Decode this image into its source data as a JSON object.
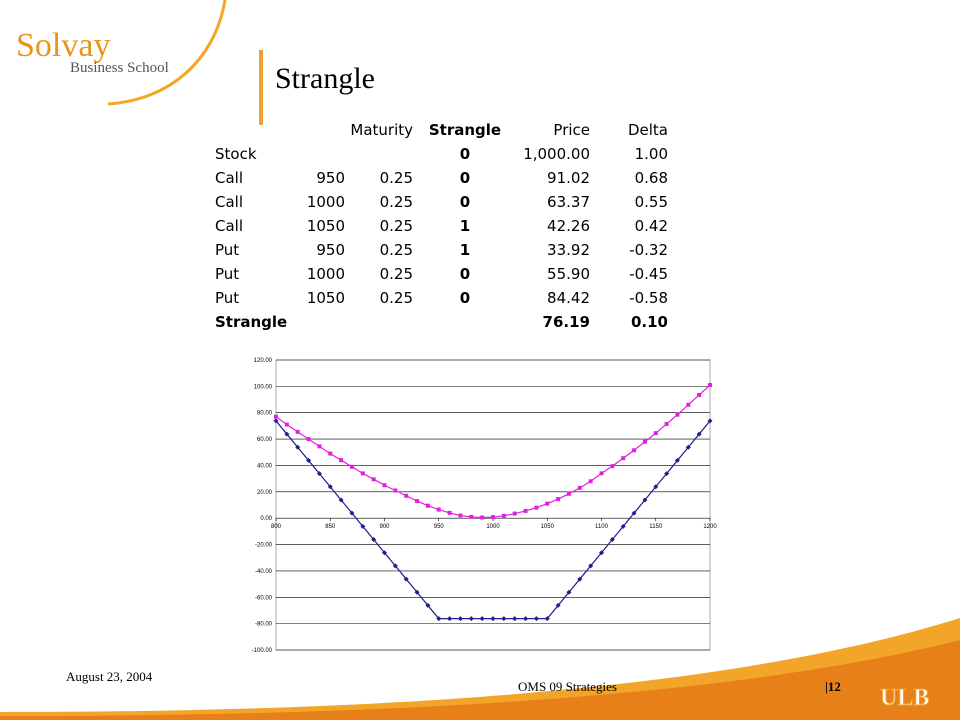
{
  "header": {
    "logo_title": "Solvay",
    "logo_subtitle": "Business School",
    "title": "Strangle"
  },
  "table": {
    "header": [
      null,
      null,
      "Maturity",
      "Strangle",
      "Price",
      "Delta"
    ],
    "rows": [
      [
        "Stock",
        null,
        null,
        "0",
        "1,000.00",
        "1.00"
      ],
      [
        "Call",
        "950",
        "0.25",
        "0",
        "91.02",
        "0.68"
      ],
      [
        "Call",
        "1000",
        "0.25",
        "0",
        "63.37",
        "0.55"
      ],
      [
        "Call",
        "1050",
        "0.25",
        "1",
        "42.26",
        "0.42"
      ],
      [
        "Put",
        "950",
        "0.25",
        "1",
        "33.92",
        "-0.32"
      ],
      [
        "Put",
        "1000",
        "0.25",
        "0",
        "55.90",
        "-0.45"
      ],
      [
        "Put",
        "1050",
        "0.25",
        "0",
        "84.42",
        "-0.58"
      ],
      [
        "Strangle",
        null,
        null,
        null,
        "76.19",
        "0.10"
      ]
    ]
  },
  "chart_data": {
    "type": "line",
    "x": [
      800,
      810,
      820,
      830,
      840,
      850,
      860,
      870,
      880,
      890,
      900,
      910,
      920,
      930,
      940,
      950,
      960,
      970,
      980,
      990,
      1000,
      1010,
      1020,
      1030,
      1040,
      1050,
      1060,
      1070,
      1080,
      1090,
      1100,
      1110,
      1120,
      1130,
      1140,
      1150,
      1160,
      1170,
      1180,
      1190,
      1200
    ],
    "series": [
      {
        "color": "#1f1f8f",
        "marker": "diamond",
        "values": [
          73.81,
          63.81,
          53.81,
          43.81,
          33.81,
          23.81,
          13.81,
          3.81,
          -6.19,
          -16.19,
          -26.19,
          -36.19,
          -46.19,
          -56.19,
          -66.19,
          -76.19,
          -76.19,
          -76.19,
          -76.19,
          -76.19,
          -76.19,
          -76.19,
          -76.19,
          -76.19,
          -76.19,
          -76.19,
          -66.19,
          -56.19,
          -46.19,
          -36.19,
          -26.19,
          -16.19,
          -6.19,
          3.81,
          13.81,
          23.81,
          33.81,
          43.81,
          53.81,
          63.81,
          73.81
        ]
      },
      {
        "color": "#e020e0",
        "marker": "square",
        "values": [
          77,
          71,
          65.5,
          60,
          54.5,
          49,
          44,
          39,
          34,
          29.5,
          25,
          21,
          17,
          13,
          9.5,
          6.5,
          4,
          2,
          1,
          0.5,
          0.8,
          1.8,
          3.5,
          5.5,
          8,
          11,
          14.5,
          18.5,
          23,
          28,
          34,
          39.5,
          45.5,
          51.5,
          58,
          64.5,
          71.5,
          78.5,
          86,
          93.5,
          101
        ]
      }
    ],
    "xlim": [
      800,
      1200
    ],
    "xticks": [
      800,
      850,
      900,
      950,
      1000,
      1050,
      1100,
      1150,
      1200
    ],
    "ylim": [
      -100,
      120
    ],
    "yticks": [
      {
        "value": 120,
        "label": "120.00"
      },
      {
        "value": 100,
        "label": "100.00"
      },
      {
        "value": 80,
        "label": "80.00"
      },
      {
        "value": 60,
        "label": "60.00"
      },
      {
        "value": 40,
        "label": "40.00"
      },
      {
        "value": 20,
        "label": "20.00"
      },
      {
        "value": 0,
        "label": "0.00"
      },
      {
        "value": -20,
        "label": "-20.00"
      },
      {
        "value": -40,
        "label": "-40.00"
      },
      {
        "value": -60,
        "label": "-60.00"
      },
      {
        "value": -80,
        "label": "-80.00"
      },
      {
        "value": -100,
        "label": "-100.00"
      }
    ],
    "grid": true
  },
  "footer": {
    "date": "August 23, 2004",
    "center": "OMS 09 Strategies",
    "page": "|12",
    "logo": "ULB"
  }
}
